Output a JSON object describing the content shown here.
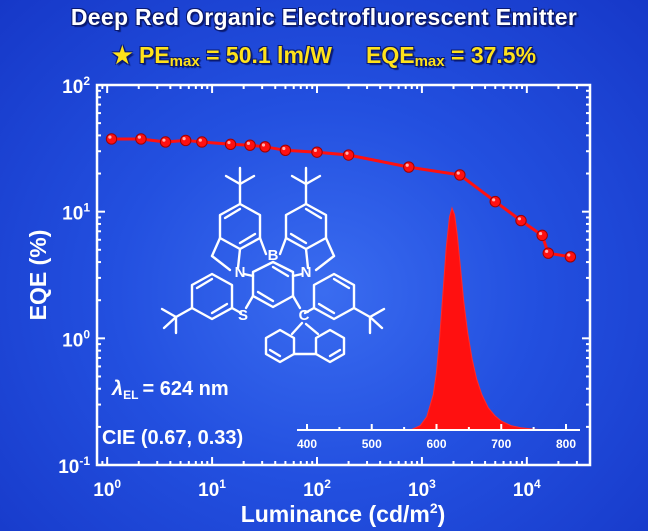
{
  "header": {
    "title": "Deep Red Organic Electrofluorescent Emitter",
    "star": "★",
    "pe_label": "PE",
    "pe_sub": "max",
    "pe_value": "= 50.1 lm/W",
    "eqe_label": "EQE",
    "eqe_sub": "max",
    "eqe_value": "= 37.5%"
  },
  "colors": {
    "background": "#2350e0",
    "title": "#ffffff",
    "subtitle": "#ffe21a",
    "series": "#ff1010",
    "axis": "#ffffff",
    "molecule": "#ffffff"
  },
  "molecule": {
    "atom_labels": [
      "B",
      "N",
      "N",
      "S",
      "C"
    ]
  },
  "annotations": {
    "lambda_symbol": "λ",
    "lambda_sub": "EL",
    "lambda_value": "= 624 nm",
    "cie": "CIE (0.67, 0.33)"
  },
  "chart_data": [
    {
      "type": "line",
      "xlabel": "Luminance (cd/m",
      "xlabel_sup": "2",
      "xlabel_end": ")",
      "ylabel": "EQE (%)",
      "xscale": "log",
      "yscale": "log",
      "xlim": [
        0.8,
        40000
      ],
      "ylim": [
        0.1,
        100
      ],
      "x_ticks": [
        {
          "base": "10",
          "exp": "0"
        },
        {
          "base": "10",
          "exp": "1"
        },
        {
          "base": "10",
          "exp": "2"
        },
        {
          "base": "10",
          "exp": "3"
        },
        {
          "base": "10",
          "exp": "4"
        }
      ],
      "y_ticks": [
        {
          "base": "10",
          "exp": "-1"
        },
        {
          "base": "10",
          "exp": "0"
        },
        {
          "base": "10",
          "exp": "1"
        },
        {
          "base": "10",
          "exp": "2"
        }
      ],
      "grid": false,
      "series": [
        {
          "x": [
            1.1,
            2.1,
            3.6,
            5.6,
            8.0,
            15,
            23,
            32,
            50,
            100,
            200,
            750,
            2300,
            5000,
            8800,
            14000,
            16000,
            26000
          ],
          "y": [
            37.5,
            37.5,
            35.5,
            36.5,
            35.5,
            34,
            33.5,
            32.5,
            30.5,
            29.5,
            28,
            22.5,
            19.5,
            12,
            8.5,
            6.5,
            4.7,
            4.4
          ]
        }
      ]
    },
    {
      "type": "area",
      "xlabel": "",
      "ylabel": "",
      "xlim": [
        400,
        800
      ],
      "x_ticks": [
        "400",
        "500",
        "600",
        "700",
        "800"
      ],
      "peak_nm": 624,
      "series": [
        {
          "x": [
            560,
            575,
            585,
            595,
            600,
            605,
            610,
            615,
            620,
            624,
            628,
            632,
            637,
            642,
            648,
            655,
            662,
            670,
            680,
            690,
            700,
            715,
            730,
            750,
            770
          ],
          "y": [
            0.0,
            0.02,
            0.06,
            0.16,
            0.26,
            0.42,
            0.62,
            0.82,
            0.96,
            1.0,
            0.97,
            0.88,
            0.73,
            0.58,
            0.44,
            0.32,
            0.23,
            0.16,
            0.1,
            0.065,
            0.04,
            0.02,
            0.01,
            0.004,
            0.0
          ]
        }
      ]
    }
  ]
}
